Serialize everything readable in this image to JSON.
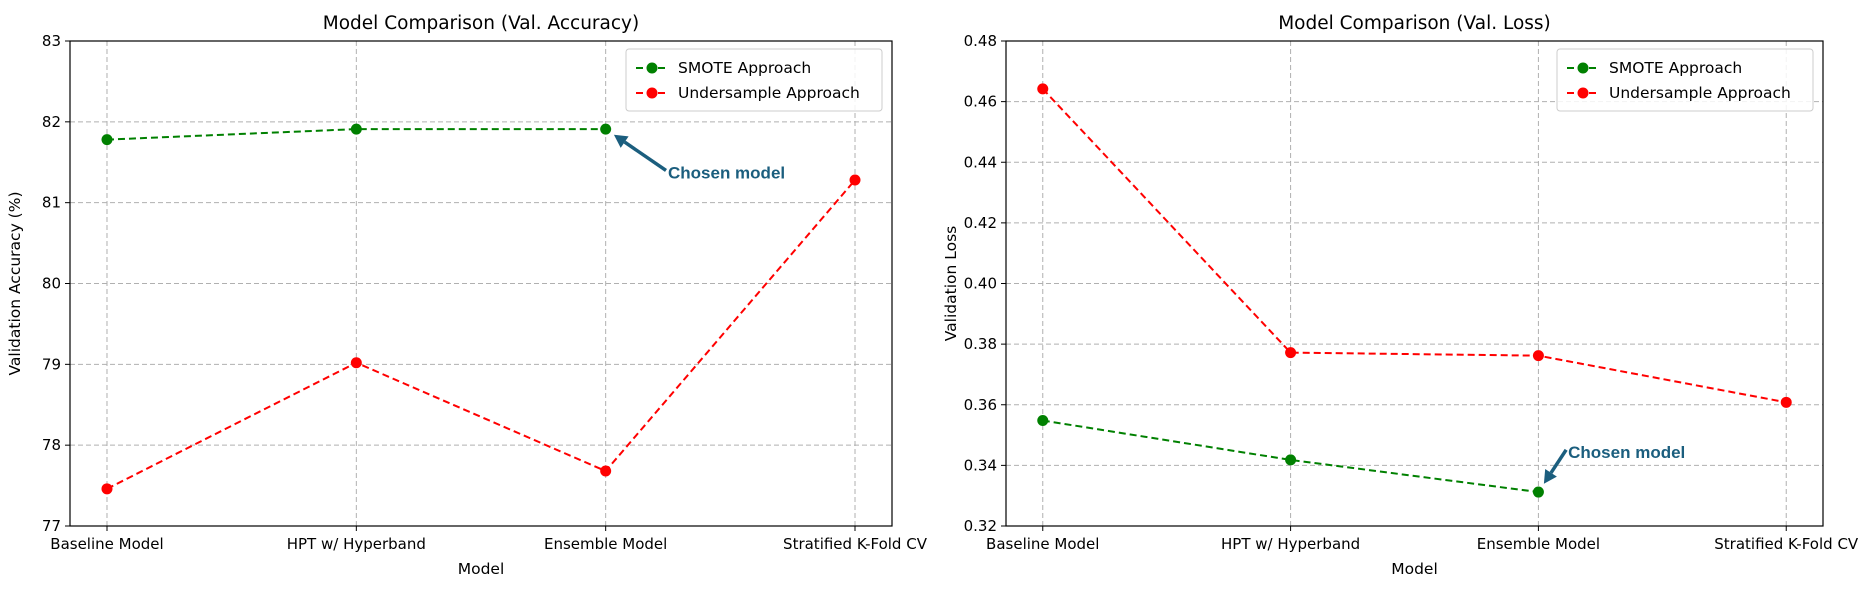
{
  "chart_data": [
    {
      "type": "line",
      "title": "Model Comparison (Val. Accuracy)",
      "xlabel": "Model",
      "ylabel": "Validation Accuracy (%)",
      "categories": [
        "Baseline Model",
        "HPT w/ Hyperband",
        "Ensemble Model",
        "Stratified K-Fold CV"
      ],
      "ylim": [
        77,
        83
      ],
      "yticks": [
        "77",
        "78",
        "79",
        "80",
        "81",
        "82",
        "83"
      ],
      "grid": true,
      "legend_position": "top-right",
      "series": [
        {
          "name": "SMOTE Approach",
          "color": "#008000",
          "x": [
            0,
            1,
            2
          ],
          "values": [
            81.78,
            81.91,
            81.91
          ]
        },
        {
          "name": "Undersample Approach",
          "color": "#ff0000",
          "x": [
            0,
            1,
            2,
            3
          ],
          "values": [
            77.46,
            79.02,
            77.68,
            81.28
          ]
        }
      ],
      "annotation": {
        "text": "Chosen model",
        "color": "#1b5e7e",
        "point": {
          "x": 2,
          "y": 81.91
        },
        "text_at": {
          "x": 2.25,
          "y": 81.3
        }
      }
    },
    {
      "type": "line",
      "title": "Model Comparison (Val. Loss)",
      "xlabel": "Model",
      "ylabel": "Validation Loss",
      "categories": [
        "Baseline Model",
        "HPT w/ Hyperband",
        "Ensemble Model",
        "Stratified K-Fold CV"
      ],
      "ylim": [
        0.32,
        0.48
      ],
      "yticks": [
        "0.32",
        "0.34",
        "0.36",
        "0.38",
        "0.40",
        "0.42",
        "0.44",
        "0.46",
        "0.48"
      ],
      "grid": true,
      "legend_position": "top-right",
      "series": [
        {
          "name": "SMOTE Approach",
          "color": "#008000",
          "x": [
            0,
            1,
            2
          ],
          "values": [
            0.3548,
            0.3418,
            0.3312
          ]
        },
        {
          "name": "Undersample Approach",
          "color": "#ff0000",
          "x": [
            0,
            1,
            2,
            3
          ],
          "values": [
            0.4642,
            0.3772,
            0.3762,
            0.3608
          ]
        }
      ],
      "annotation": {
        "text": "Chosen model",
        "color": "#1b5e7e",
        "point": {
          "x": 2,
          "y": 0.3312
        },
        "text_at": {
          "x": 2.12,
          "y": 0.3425
        }
      }
    }
  ]
}
